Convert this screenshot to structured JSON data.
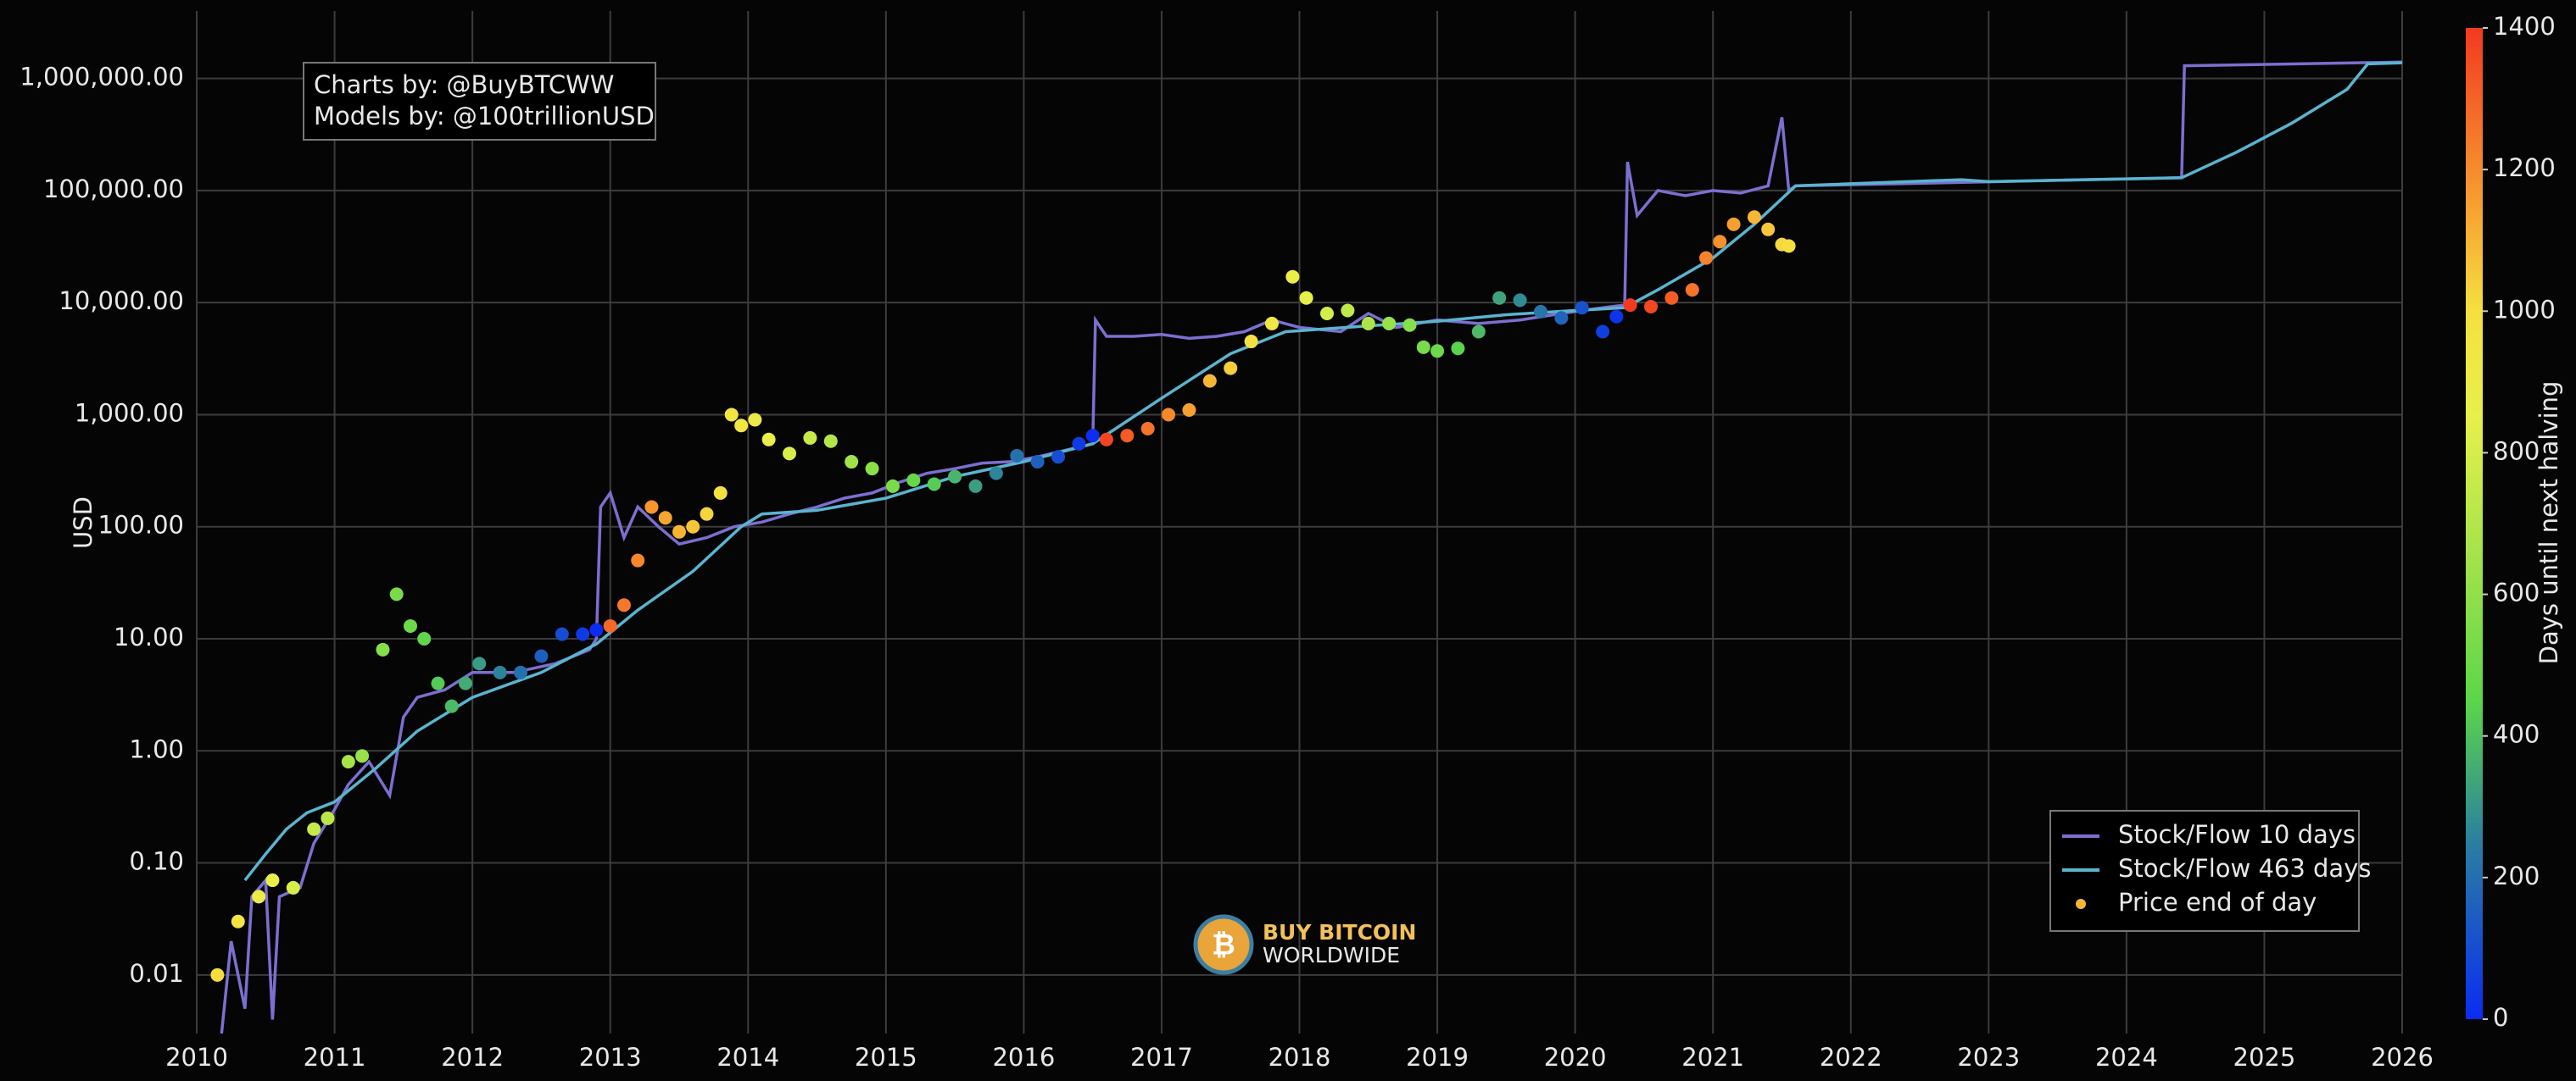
{
  "chart_data": {
    "type": "line",
    "y_label": "USD",
    "log_scale": true,
    "grid": true,
    "legend": "lower right",
    "xlim": [
      2010,
      2026
    ],
    "xticks": [
      2010,
      2011,
      2012,
      2013,
      2014,
      2015,
      2016,
      2017,
      2018,
      2019,
      2020,
      2021,
      2022,
      2023,
      2024,
      2025,
      2026
    ],
    "ylim": [
      0.003,
      4000000
    ],
    "yticks": [
      {
        "value": 0.01,
        "label": "0.01"
      },
      {
        "value": 0.1,
        "label": "0.10"
      },
      {
        "value": 1,
        "label": "1.00"
      },
      {
        "value": 10,
        "label": "10.00"
      },
      {
        "value": 100,
        "label": "100.00"
      },
      {
        "value": 1000,
        "label": "1,000.00"
      },
      {
        "value": 10000,
        "label": "10,000.00"
      },
      {
        "value": 100000,
        "label": "100,000.00"
      },
      {
        "value": 1000000,
        "label": "1,000,000.00"
      }
    ],
    "annotations": [
      "Charts by: @BuyBTCWW",
      "Models by: @100trillionUSD"
    ],
    "watermark": [
      "BUY BITCOIN",
      "WORLDWIDE"
    ],
    "colorbar": {
      "label": "Days until next halving",
      "lim": [
        0,
        1400
      ],
      "ticks": [
        0,
        200,
        400,
        600,
        800,
        1000,
        1200,
        1400
      ],
      "colorscale": [
        [
          0,
          "#0a2cf2"
        ],
        [
          250,
          "#2a7fa0"
        ],
        [
          450,
          "#5cd64a"
        ],
        [
          850,
          "#e8f04a"
        ],
        [
          1000,
          "#f5e040"
        ],
        [
          1150,
          "#f7a030"
        ],
        [
          1400,
          "#f23a20"
        ]
      ]
    },
    "series": [
      {
        "name": "Stock/Flow 10 days",
        "mark": "line",
        "color": "#7b6fd0",
        "x": [
          2010.18,
          2010.25,
          2010.35,
          2010.4,
          2010.5,
          2010.55,
          2010.6,
          2010.75,
          2010.85,
          2011.0,
          2011.1,
          2011.25,
          2011.4,
          2011.5,
          2011.6,
          2011.8,
          2012.0,
          2012.3,
          2012.6,
          2012.85,
          2012.9,
          2012.93,
          2013.0,
          2013.1,
          2013.2,
          2013.35,
          2013.5,
          2013.7,
          2013.9,
          2014.1,
          2014.3,
          2014.5,
          2014.7,
          2014.9,
          2015.1,
          2015.3,
          2015.5,
          2015.7,
          2015.9,
          2016.1,
          2016.3,
          2016.5,
          2016.52,
          2016.6,
          2016.8,
          2017.0,
          2017.2,
          2017.4,
          2017.6,
          2017.8,
          2018.0,
          2018.3,
          2018.5,
          2018.7,
          2019.0,
          2019.3,
          2019.6,
          2019.9,
          2020.2,
          2020.36,
          2020.38,
          2020.45,
          2020.6,
          2020.8,
          2021.0,
          2021.2,
          2021.4,
          2021.5,
          2021.55,
          2021.6,
          2024.4,
          2024.42,
          2026.0
        ],
        "values": [
          0.003,
          0.02,
          0.005,
          0.05,
          0.07,
          0.004,
          0.05,
          0.06,
          0.15,
          0.3,
          0.5,
          0.8,
          0.4,
          2,
          3,
          3.5,
          5,
          5,
          6,
          8,
          10,
          150,
          200,
          80,
          150,
          100,
          70,
          80,
          100,
          110,
          130,
          150,
          180,
          200,
          250,
          300,
          330,
          370,
          380,
          420,
          480,
          550,
          7000,
          5000,
          5000,
          5200,
          4800,
          5000,
          5500,
          7000,
          6000,
          5500,
          8000,
          6000,
          7000,
          6500,
          7000,
          8000,
          9000,
          9500,
          180000,
          60000,
          100000,
          90000,
          100000,
          95000,
          110000,
          450000,
          100000,
          110000,
          130000,
          1300000,
          1400000
        ]
      },
      {
        "name": "Stock/Flow 463 days",
        "mark": "line",
        "color": "#5ab4cf",
        "x": [
          2010.35,
          2010.5,
          2010.65,
          2010.8,
          2011.0,
          2011.3,
          2011.6,
          2012.0,
          2012.5,
          2012.9,
          2013.2,
          2013.6,
          2013.95,
          2014.1,
          2014.5,
          2015.0,
          2015.5,
          2016.0,
          2016.5,
          2017.0,
          2017.5,
          2017.9,
          2018.5,
          2019.0,
          2019.5,
          2020.0,
          2020.36,
          2020.6,
          2021.0,
          2021.3,
          2021.6,
          2022.0,
          2022.8,
          2023.0,
          2024.4,
          2024.8,
          2025.2,
          2025.6,
          2025.75,
          2026.0
        ],
        "values": [
          0.07,
          0.12,
          0.2,
          0.28,
          0.35,
          0.7,
          1.5,
          3,
          5,
          9,
          18,
          40,
          100,
          130,
          140,
          180,
          280,
          380,
          550,
          1400,
          3500,
          5500,
          6200,
          6800,
          7800,
          8500,
          9000,
          13000,
          25000,
          50000,
          110000,
          115000,
          125000,
          120000,
          130000,
          220000,
          400000,
          800000,
          1350000,
          1380000
        ]
      },
      {
        "name": "Price end of day",
        "mark": "dot",
        "color": "#f5b53a",
        "x": [
          2010.15,
          2010.3,
          2010.45,
          2010.55,
          2010.7,
          2010.85,
          2010.95,
          2011.1,
          2011.2,
          2011.35,
          2011.45,
          2011.55,
          2011.65,
          2011.75,
          2011.85,
          2011.95,
          2012.05,
          2012.2,
          2012.35,
          2012.5,
          2012.65,
          2012.8,
          2012.9,
          2013.0,
          2013.1,
          2013.2,
          2013.3,
          2013.4,
          2013.5,
          2013.6,
          2013.7,
          2013.8,
          2013.88,
          2013.95,
          2014.05,
          2014.15,
          2014.3,
          2014.45,
          2014.6,
          2014.75,
          2014.9,
          2015.05,
          2015.2,
          2015.35,
          2015.5,
          2015.65,
          2015.8,
          2015.95,
          2016.1,
          2016.25,
          2016.4,
          2016.5,
          2016.6,
          2016.75,
          2016.9,
          2017.05,
          2017.2,
          2017.35,
          2017.5,
          2017.65,
          2017.8,
          2017.95,
          2018.05,
          2018.2,
          2018.35,
          2018.5,
          2018.65,
          2018.8,
          2018.9,
          2019.0,
          2019.15,
          2019.3,
          2019.45,
          2019.6,
          2019.75,
          2019.9,
          2020.05,
          2020.2,
          2020.3,
          2020.4,
          2020.55,
          2020.7,
          2020.85,
          2020.95,
          2021.05,
          2021.15,
          2021.3,
          2021.4,
          2021.5,
          2021.55
        ],
        "values": [
          0.01,
          0.03,
          0.05,
          0.07,
          0.06,
          0.2,
          0.25,
          0.8,
          0.9,
          8,
          25,
          13,
          10,
          4,
          2.5,
          4,
          6,
          5,
          5,
          7,
          11,
          11,
          12,
          13,
          20,
          50,
          150,
          120,
          90,
          100,
          130,
          200,
          1000,
          800,
          900,
          600,
          450,
          620,
          580,
          380,
          330,
          230,
          260,
          240,
          280,
          230,
          300,
          430,
          380,
          420,
          550,
          650,
          600,
          650,
          750,
          1000,
          1100,
          2000,
          2600,
          4500,
          6500,
          17000,
          11000,
          8000,
          8500,
          6500,
          6500,
          6300,
          4000,
          3700,
          3900,
          5500,
          11000,
          10500,
          8300,
          7300,
          9000,
          5500,
          7500,
          9500,
          9200,
          11000,
          13000,
          25000,
          35000,
          50000,
          58000,
          45000,
          33000,
          32000
        ],
        "color_values": [
          1007,
          953,
          898,
          861,
          807,
          752,
          715,
          661,
          624,
          569,
          533,
          496,
          460,
          423,
          387,
          350,
          314,
          259,
          204,
          150,
          95,
          40,
          4,
          1285,
          1248,
          1212,
          1175,
          1139,
          1102,
          1066,
          1029,
          993,
          964,
          938,
          902,
          865,
          810,
          756,
          701,
          646,
          591,
          537,
          482,
          427,
          372,
          318,
          263,
          208,
          153,
          99,
          44,
          7,
          1372,
          1318,
          1263,
          1208,
          1153,
          1099,
          1044,
          989,
          934,
          880,
          843,
          788,
          734,
          679,
          624,
          569,
          533,
          496,
          442,
          387,
          332,
          277,
          223,
          168,
          113,
          58,
          22,
          1424,
          1369,
          1314,
          1259,
          1223,
          1186,
          1150,
          1095,
          1059,
          1022,
          1004
        ]
      }
    ]
  }
}
